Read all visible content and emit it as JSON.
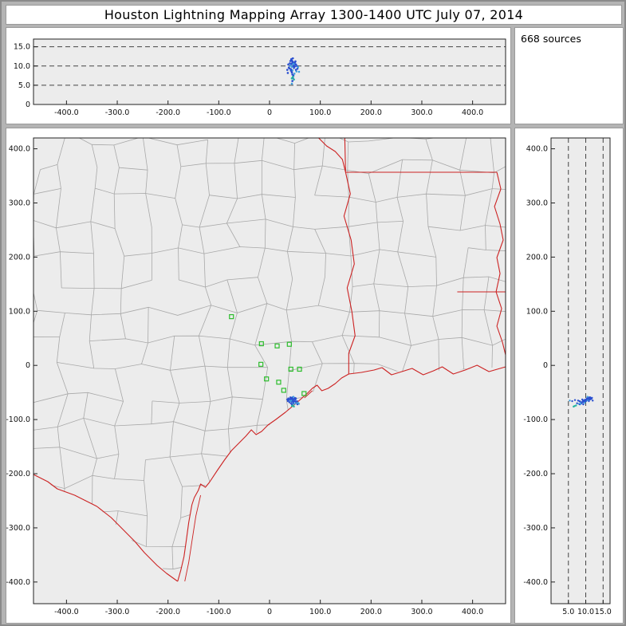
{
  "title": "Houston Lightning Mapping Array   1300-1400 UTC  July 07, 2014",
  "source_count_label": "668 sources",
  "colors": {
    "background": "#b4b4b4",
    "panel": "#ffffff",
    "plot_background": "#ececec",
    "frame": "#222222",
    "state_border": "#cc2222",
    "county_line": "#a8a8a8",
    "station_marker": "#2dbd2d",
    "dashed_line": "#444444",
    "tick_text": "#111111"
  },
  "palette": [
    "#2a4fd0",
    "#3fa0dc",
    "#23b5a0"
  ],
  "axes": {
    "ew": {
      "values": [
        -400,
        -300,
        -200,
        -100,
        0,
        100,
        200,
        300,
        400
      ],
      "labels": [
        "-400.0",
        "-300.0",
        "-200.0",
        "-100.0",
        "0",
        "100.0",
        "200.0",
        "300.0",
        "400.0"
      ]
    },
    "ns": {
      "values": [
        400,
        300,
        200,
        100,
        0,
        -100,
        -200,
        -300,
        -400
      ],
      "labels": [
        "400.0",
        "300.0",
        "200.0",
        "100.0",
        "0",
        "-100.0",
        "-200.0",
        "-300.0",
        "-400.0"
      ]
    },
    "alt": {
      "values": [
        0,
        5,
        10,
        15
      ],
      "labels": [
        "0",
        "5.0",
        "10.0",
        "15.0"
      ]
    },
    "alt_right": {
      "values": [
        5,
        10,
        15
      ],
      "labels": [
        "5.0",
        "10.0",
        "15.0"
      ]
    },
    "alt_gridlines": [
      5,
      10,
      15
    ]
  },
  "chart_data": {
    "type": "scatter",
    "title": "Houston Lightning Mapping Array 1300-1400 UTC July 07, 2014",
    "source_count": 668,
    "panels": [
      {
        "name": "altitude-vs-east-west",
        "xlim": [
          -465,
          465
        ],
        "ylim": [
          0,
          17
        ],
        "y_gridlines_km": [
          5,
          10,
          15
        ],
        "xticks": [
          -400,
          -300,
          -200,
          -100,
          0,
          100,
          200,
          300,
          400
        ],
        "yticks": [
          0,
          5,
          10,
          15
        ]
      },
      {
        "name": "plan-view-map",
        "xlim": [
          -465,
          465
        ],
        "ylim": [
          -440,
          420
        ],
        "xticks": [
          -400,
          -300,
          -200,
          -100,
          0,
          100,
          200,
          300,
          400
        ],
        "yticks": [
          400,
          300,
          200,
          100,
          0,
          -100,
          -200,
          -300,
          -400
        ],
        "map_layers": [
          "county-boundaries",
          "state-borders",
          "gulf-coastline",
          "rio-grande",
          "barrier-islands"
        ]
      },
      {
        "name": "altitude-vs-north-south",
        "xlim": [
          0,
          17
        ],
        "ylim": [
          -440,
          420
        ],
        "x_gridlines_km": [
          5,
          10,
          15
        ],
        "xticks": [
          5,
          10,
          15
        ]
      }
    ],
    "stations_xy_km": [
      [
        -75,
        90
      ],
      [
        -16,
        40
      ],
      [
        15,
        36
      ],
      [
        39,
        39
      ],
      [
        -17,
        2
      ],
      [
        -6,
        -25
      ],
      [
        18,
        -31
      ],
      [
        42,
        -7
      ],
      [
        59,
        -7
      ],
      [
        28,
        -46
      ],
      [
        68,
        -52
      ]
    ],
    "sources_xyz_km": [
      [
        45,
        -63,
        10.8,
        0
      ],
      [
        47,
        -65,
        10.2,
        0
      ],
      [
        44,
        -66,
        9.8,
        1
      ],
      [
        46,
        -62,
        11.1,
        0
      ],
      [
        43,
        -64,
        10.5,
        0
      ],
      [
        48,
        -67,
        9.5,
        0
      ],
      [
        45,
        -68,
        8.9,
        1
      ],
      [
        44,
        -61,
        11.4,
        0
      ],
      [
        46,
        -66,
        10.9,
        0
      ],
      [
        47,
        -63,
        10.0,
        0
      ],
      [
        42,
        -65,
        9.2,
        0
      ],
      [
        49,
        -64,
        10.6,
        1
      ],
      [
        45,
        -65,
        7.8,
        0
      ],
      [
        44,
        -67,
        8.4,
        0
      ],
      [
        46,
        -64,
        6.9,
        0
      ],
      [
        45,
        -66,
        6.1,
        0
      ],
      [
        44,
        -65,
        5.4,
        1
      ],
      [
        46,
        -65,
        12.0,
        0
      ],
      [
        43,
        -62,
        11.6,
        0
      ],
      [
        48,
        -62,
        10.3,
        0
      ],
      [
        50,
        -66,
        9.9,
        0
      ],
      [
        41,
        -66,
        10.1,
        1
      ],
      [
        52,
        -68,
        9.0,
        0
      ],
      [
        38,
        -64,
        9.6,
        0
      ],
      [
        40,
        -62,
        10.7,
        0
      ],
      [
        53,
        -70,
        8.6,
        1
      ],
      [
        36,
        -66,
        8.2,
        0
      ],
      [
        55,
        -72,
        9.3,
        0
      ],
      [
        47,
        -70,
        7.5,
        0
      ],
      [
        49,
        -71,
        8.0,
        1
      ],
      [
        51,
        -63,
        11.2,
        0
      ],
      [
        39,
        -68,
        9.4,
        0
      ],
      [
        37,
        -61,
        10.4,
        0
      ],
      [
        54,
        -66,
        10.0,
        0
      ],
      [
        56,
        -69,
        9.7,
        1
      ],
      [
        42,
        -70,
        8.8,
        0
      ],
      [
        44,
        -72,
        8.3,
        0
      ],
      [
        46,
        -74,
        7.2,
        2
      ],
      [
        48,
        -76,
        6.5,
        2
      ],
      [
        43,
        -60,
        11.8,
        0
      ],
      [
        45,
        -59,
        11.0,
        0
      ],
      [
        47,
        -58,
        10.5,
        1
      ],
      [
        50,
        -60,
        10.9,
        0
      ],
      [
        35,
        -63,
        9.0,
        0
      ],
      [
        58,
        -71,
        8.5,
        1
      ],
      [
        41,
        -59,
        11.3,
        0
      ],
      [
        52,
        -61,
        10.4,
        0
      ],
      [
        44,
        -75,
        6.8,
        2
      ]
    ]
  }
}
